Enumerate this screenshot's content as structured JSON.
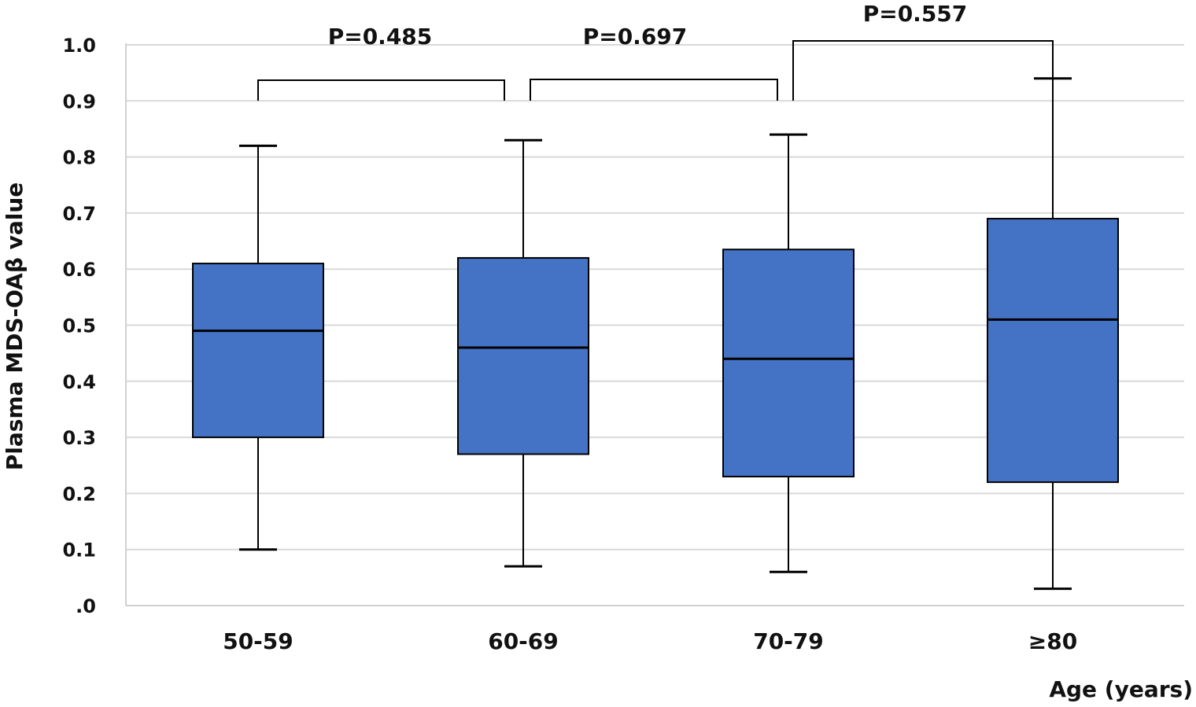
{
  "chart_data": {
    "type": "box",
    "xlabel": "Age (years)",
    "ylabel": "Plasma MDS-OAβ value",
    "ylim": [
      0,
      1.0
    ],
    "yticks": [
      ".0",
      "0.1",
      "0.2",
      "0.3",
      "0.4",
      "0.5",
      "0.6",
      "0.7",
      "0.8",
      "0.9",
      "1.0"
    ],
    "grid": true,
    "box_color": "#4472C4",
    "categories": [
      "50-59",
      "60-69",
      "70-79",
      "≥80"
    ],
    "boxes": [
      {
        "min": 0.1,
        "q1": 0.3,
        "median": 0.49,
        "q3": 0.61,
        "max": 0.82
      },
      {
        "min": 0.07,
        "q1": 0.27,
        "median": 0.46,
        "q3": 0.62,
        "max": 0.83
      },
      {
        "min": 0.06,
        "q1": 0.23,
        "median": 0.44,
        "q3": 0.635,
        "max": 0.84
      },
      {
        "min": 0.03,
        "q1": 0.22,
        "median": 0.51,
        "q3": 0.69,
        "max": 0.94
      }
    ],
    "comparisons": [
      {
        "from": 0,
        "to": 1,
        "label": "P=0.485"
      },
      {
        "from": 1,
        "to": 2,
        "label": "P=0.697"
      },
      {
        "from": 2,
        "to": 3,
        "label": "P=0.557"
      }
    ]
  }
}
